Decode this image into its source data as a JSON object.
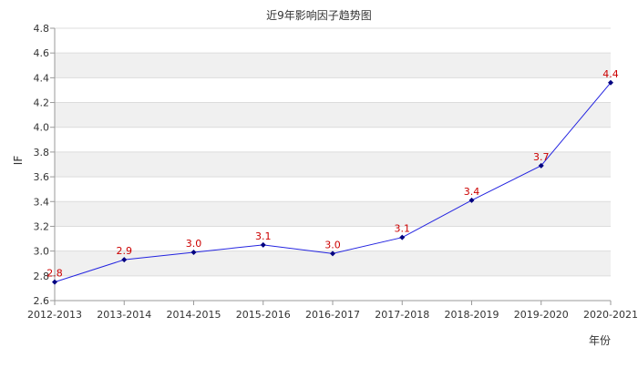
{
  "chart_data": {
    "type": "line",
    "title": "近9年影响因子趋势图",
    "xlabel": "年份",
    "ylabel": "IF",
    "categories": [
      "2012-2013",
      "2013-2014",
      "2014-2015",
      "2015-2016",
      "2016-2017",
      "2017-2018",
      "2018-2019",
      "2019-2020",
      "2020-2021"
    ],
    "series": [
      {
        "values": [
          2.75,
          2.93,
          2.99,
          3.05,
          2.98,
          3.11,
          3.41,
          3.69,
          4.36
        ],
        "labels": [
          "2.8",
          "2.9",
          "3.0",
          "3.1",
          "3.0",
          "3.1",
          "3.4",
          "3.7",
          "4.4"
        ]
      }
    ],
    "ylim": [
      2.6,
      4.8
    ],
    "yticks": [
      "2.6",
      "2.8",
      "3.0",
      "3.2",
      "3.4",
      "3.6",
      "3.8",
      "4.0",
      "4.2",
      "4.4",
      "4.6",
      "4.8"
    ],
    "grid": true,
    "colors": {
      "line": "#2424e0",
      "marker": "#000080",
      "data_label": "#cc0000",
      "band": "#f0f0f0",
      "gridline": "#dcdcdc",
      "axis": "#999999",
      "text": "#333333"
    }
  }
}
